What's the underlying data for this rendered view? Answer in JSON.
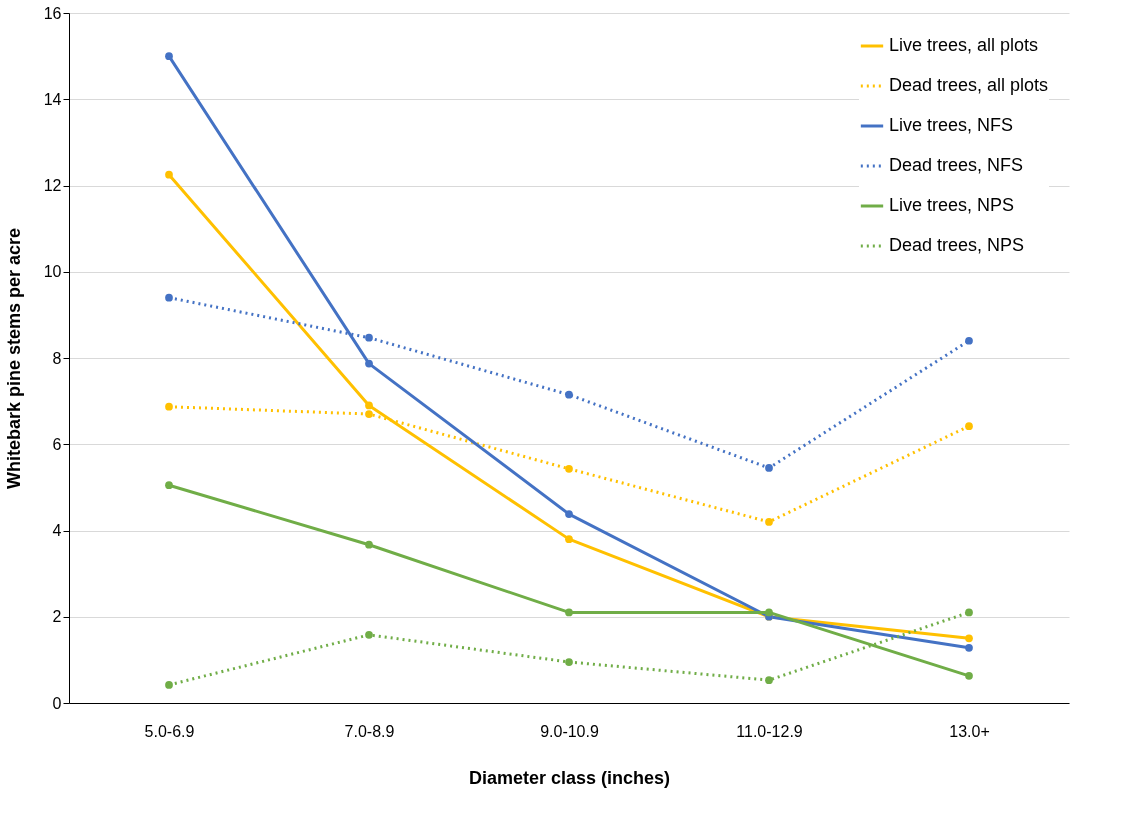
{
  "chart_data": {
    "type": "line",
    "xlabel": "Diameter class (inches)",
    "ylabel": "Whitebark pine stems per acre",
    "categories": [
      "5.0-6.9",
      "7.0-8.9",
      "9.0-10.9",
      "11.0-12.9",
      "13.0+"
    ],
    "ylim": [
      0,
      16
    ],
    "yticks": [
      0,
      2,
      4,
      6,
      8,
      10,
      12,
      14,
      16
    ],
    "grid": "y",
    "legend": "top right",
    "marker": "circle",
    "series": [
      {
        "name": "Live trees, all plots",
        "color": "#ffc000",
        "line_style": "solid",
        "values": [
          12.25,
          6.9,
          3.8,
          2.0,
          1.5
        ]
      },
      {
        "name": "Dead trees, all plots",
        "color": "#ffc000",
        "line_style": "dotted",
        "values": [
          6.87,
          6.7,
          5.43,
          4.2,
          6.42
        ]
      },
      {
        "name": "Live trees, NFS",
        "color": "#4472c4",
        "line_style": "solid",
        "values": [
          15.0,
          7.87,
          4.38,
          2.0,
          1.28
        ]
      },
      {
        "name": "Dead trees, NFS",
        "color": "#4472c4",
        "line_style": "dotted",
        "values": [
          9.4,
          8.47,
          7.15,
          5.45,
          8.4
        ]
      },
      {
        "name": "Live trees, NPS",
        "color": "#70ad47",
        "line_style": "solid",
        "values": [
          5.05,
          3.67,
          2.1,
          2.1,
          0.63
        ]
      },
      {
        "name": "Dead trees, NPS",
        "color": "#70ad47",
        "line_style": "dotted",
        "values": [
          0.42,
          1.58,
          0.95,
          0.53,
          2.1
        ]
      }
    ]
  }
}
